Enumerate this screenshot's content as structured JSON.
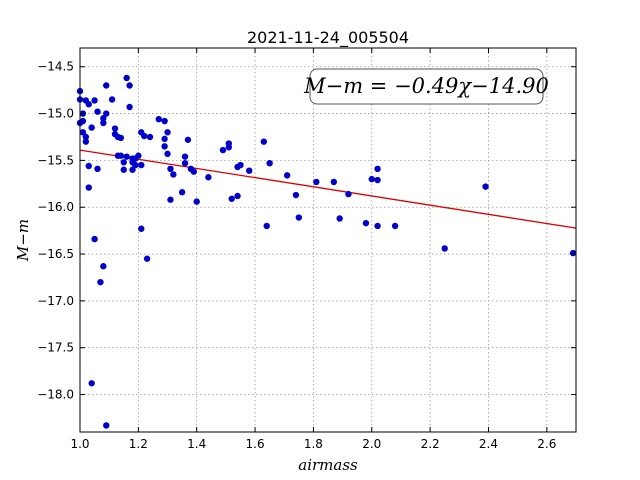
{
  "chart_data": {
    "type": "scatter",
    "title": "2021-11-24_005504",
    "xlabel": "airmass",
    "ylabel": "M−m",
    "xlim": [
      1.0,
      2.7
    ],
    "ylim": [
      -18.4,
      -14.3
    ],
    "x_ticks": [
      "1.0",
      "1.2",
      "1.4",
      "1.6",
      "1.8",
      "2.0",
      "2.2",
      "2.4",
      "2.6"
    ],
    "y_ticks": [
      "−14.5",
      "−15.0",
      "−15.5",
      "−16.0",
      "−16.5",
      "−17.0",
      "−17.5",
      "−18.0"
    ],
    "grid": true,
    "annotation": "M−m = −0.49χ−14.90",
    "colors": {
      "points": "#0000cc",
      "fit_line": "#dd0000"
    },
    "fit": {
      "slope": -0.49,
      "intercept": -14.9,
      "x_range": [
        1.0,
        2.7
      ]
    },
    "points": [
      [
        1.0,
        -14.76
      ],
      [
        1.0,
        -14.85
      ],
      [
        1.0,
        -15.1
      ],
      [
        1.01,
        -15.0
      ],
      [
        1.01,
        -15.08
      ],
      [
        1.01,
        -15.2
      ],
      [
        1.02,
        -15.25
      ],
      [
        1.02,
        -15.3
      ],
      [
        1.02,
        -14.86
      ],
      [
        1.03,
        -14.9
      ],
      [
        1.03,
        -15.56
      ],
      [
        1.03,
        -15.79
      ],
      [
        1.04,
        -15.15
      ],
      [
        1.04,
        -17.88
      ],
      [
        1.05,
        -16.34
      ],
      [
        1.05,
        -14.86
      ],
      [
        1.06,
        -14.98
      ],
      [
        1.06,
        -15.59
      ],
      [
        1.07,
        -16.8
      ],
      [
        1.08,
        -16.63
      ],
      [
        1.08,
        -15.1
      ],
      [
        1.08,
        -15.05
      ],
      [
        1.09,
        -15.0
      ],
      [
        1.09,
        -14.7
      ],
      [
        1.09,
        -18.33
      ],
      [
        1.11,
        -14.85
      ],
      [
        1.12,
        -15.16
      ],
      [
        1.12,
        -15.22
      ],
      [
        1.13,
        -15.25
      ],
      [
        1.13,
        -15.45
      ],
      [
        1.14,
        -15.26
      ],
      [
        1.14,
        -15.45
      ],
      [
        1.15,
        -15.52
      ],
      [
        1.15,
        -15.6
      ],
      [
        1.16,
        -15.46
      ],
      [
        1.16,
        -14.62
      ],
      [
        1.17,
        -14.7
      ],
      [
        1.17,
        -14.93
      ],
      [
        1.18,
        -15.48
      ],
      [
        1.18,
        -15.52
      ],
      [
        1.18,
        -15.6
      ],
      [
        1.19,
        -15.55
      ],
      [
        1.19,
        -15.48
      ],
      [
        1.2,
        -15.45
      ],
      [
        1.21,
        -15.2
      ],
      [
        1.21,
        -15.55
      ],
      [
        1.21,
        -16.23
      ],
      [
        1.22,
        -15.24
      ],
      [
        1.23,
        -16.55
      ],
      [
        1.24,
        -15.25
      ],
      [
        1.27,
        -15.06
      ],
      [
        1.29,
        -15.08
      ],
      [
        1.29,
        -15.27
      ],
      [
        1.29,
        -15.35
      ],
      [
        1.3,
        -15.2
      ],
      [
        1.3,
        -15.43
      ],
      [
        1.31,
        -15.59
      ],
      [
        1.31,
        -15.92
      ],
      [
        1.32,
        -15.65
      ],
      [
        1.35,
        -15.84
      ],
      [
        1.36,
        -15.53
      ],
      [
        1.36,
        -15.46
      ],
      [
        1.37,
        -15.28
      ],
      [
        1.38,
        -15.59
      ],
      [
        1.39,
        -15.62
      ],
      [
        1.4,
        -15.94
      ],
      [
        1.44,
        -15.68
      ],
      [
        1.49,
        -15.39
      ],
      [
        1.51,
        -15.32
      ],
      [
        1.51,
        -15.36
      ],
      [
        1.52,
        -15.91
      ],
      [
        1.54,
        -15.88
      ],
      [
        1.54,
        -15.57
      ],
      [
        1.55,
        -15.55
      ],
      [
        1.58,
        -15.61
      ],
      [
        1.63,
        -15.3
      ],
      [
        1.64,
        -16.2
      ],
      [
        1.65,
        -15.53
      ],
      [
        1.71,
        -15.66
      ],
      [
        1.74,
        -15.87
      ],
      [
        1.75,
        -16.11
      ],
      [
        1.81,
        -15.73
      ],
      [
        1.87,
        -15.73
      ],
      [
        1.89,
        -16.12
      ],
      [
        1.92,
        -15.86
      ],
      [
        1.98,
        -16.17
      ],
      [
        2.0,
        -15.7
      ],
      [
        2.02,
        -16.2
      ],
      [
        2.02,
        -15.59
      ],
      [
        2.02,
        -15.71
      ],
      [
        2.08,
        -16.2
      ],
      [
        2.25,
        -16.44
      ],
      [
        2.39,
        -15.78
      ],
      [
        2.69,
        -16.49
      ]
    ]
  }
}
